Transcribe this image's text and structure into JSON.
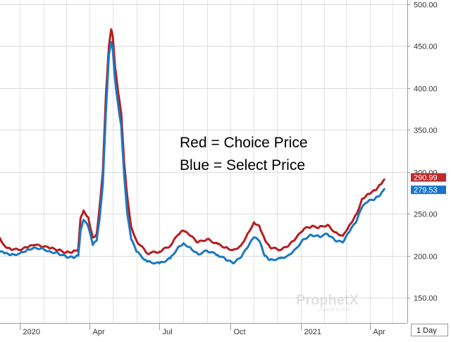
{
  "chart_data": {
    "type": "line",
    "title": "",
    "xlabel": "",
    "ylabel": "",
    "ylim": [
      120,
      505
    ],
    "y_ticks": [
      "150.00",
      "200.00",
      "250.00",
      "300.00",
      "350.00",
      "400.00",
      "450.00",
      "500.00"
    ],
    "x_tick_labels": [
      "2020",
      "Apr",
      "Jul",
      "Oct",
      "2021",
      "Apr"
    ],
    "x_range": [
      "2019-12-06",
      "2021-05-20"
    ],
    "annotation_lines": [
      "Red = Choice Price",
      "Blue = Select Price"
    ],
    "last_value_badges": [
      {
        "text": "290.99",
        "color": "#c0282a"
      },
      {
        "text": "279.53",
        "color": "#1a73c8"
      }
    ],
    "timeframe_label": "1 Day",
    "watermark": "ProphetX",
    "grid": true,
    "series": [
      {
        "color": "#b81c20",
        "points": [
          [
            "2019-12-06",
            221
          ],
          [
            "2019-12-12",
            212
          ],
          [
            "2019-12-20",
            208
          ],
          [
            "2020-01-01",
            207
          ],
          [
            "2020-01-10",
            210
          ],
          [
            "2020-01-20",
            213
          ],
          [
            "2020-02-01",
            211
          ],
          [
            "2020-02-10",
            209
          ],
          [
            "2020-02-20",
            207
          ],
          [
            "2020-03-01",
            204
          ],
          [
            "2020-03-10",
            205
          ],
          [
            "2020-03-17",
            208
          ],
          [
            "2020-03-20",
            245
          ],
          [
            "2020-03-24",
            254
          ],
          [
            "2020-03-30",
            246
          ],
          [
            "2020-04-05",
            222
          ],
          [
            "2020-04-10",
            226
          ],
          [
            "2020-04-14",
            260
          ],
          [
            "2020-04-18",
            300
          ],
          [
            "2020-04-22",
            390
          ],
          [
            "2020-04-26",
            450
          ],
          [
            "2020-04-29",
            470
          ],
          [
            "2020-05-01",
            462
          ],
          [
            "2020-05-04",
            425
          ],
          [
            "2020-05-08",
            395
          ],
          [
            "2020-05-12",
            370
          ],
          [
            "2020-05-16",
            310
          ],
          [
            "2020-05-20",
            270
          ],
          [
            "2020-05-25",
            235
          ],
          [
            "2020-06-01",
            218
          ],
          [
            "2020-06-15",
            203
          ],
          [
            "2020-07-01",
            205
          ],
          [
            "2020-07-15",
            212
          ],
          [
            "2020-07-25",
            225
          ],
          [
            "2020-08-01",
            230
          ],
          [
            "2020-08-10",
            224
          ],
          [
            "2020-08-20",
            216
          ],
          [
            "2020-09-01",
            220
          ],
          [
            "2020-09-15",
            214
          ],
          [
            "2020-09-25",
            210
          ],
          [
            "2020-10-05",
            207
          ],
          [
            "2020-10-15",
            212
          ],
          [
            "2020-10-25",
            228
          ],
          [
            "2020-11-01",
            240
          ],
          [
            "2020-11-08",
            236
          ],
          [
            "2020-11-15",
            220
          ],
          [
            "2020-11-22",
            210
          ],
          [
            "2020-12-05",
            207
          ],
          [
            "2020-12-15",
            211
          ],
          [
            "2020-12-25",
            220
          ],
          [
            "2021-01-05",
            232
          ],
          [
            "2021-01-15",
            235
          ],
          [
            "2021-01-25",
            234
          ],
          [
            "2021-02-05",
            237
          ],
          [
            "2021-02-15",
            228
          ],
          [
            "2021-02-25",
            224
          ],
          [
            "2021-03-05",
            236
          ],
          [
            "2021-03-15",
            250
          ],
          [
            "2021-03-22",
            268
          ],
          [
            "2021-03-30",
            274
          ],
          [
            "2021-04-08",
            278
          ],
          [
            "2021-04-15",
            285
          ],
          [
            "2021-04-20",
            290.99
          ]
        ]
      },
      {
        "color": "#1a78c2",
        "points": [
          [
            "2019-12-06",
            205
          ],
          [
            "2019-12-12",
            203
          ],
          [
            "2019-12-20",
            201
          ],
          [
            "2020-01-01",
            203
          ],
          [
            "2020-01-10",
            207
          ],
          [
            "2020-01-20",
            210
          ],
          [
            "2020-02-01",
            208
          ],
          [
            "2020-02-10",
            205
          ],
          [
            "2020-02-20",
            203
          ],
          [
            "2020-03-01",
            199
          ],
          [
            "2020-03-10",
            198
          ],
          [
            "2020-03-17",
            200
          ],
          [
            "2020-03-20",
            230
          ],
          [
            "2020-03-24",
            243
          ],
          [
            "2020-03-30",
            235
          ],
          [
            "2020-04-05",
            213
          ],
          [
            "2020-04-10",
            218
          ],
          [
            "2020-04-14",
            245
          ],
          [
            "2020-04-18",
            285
          ],
          [
            "2020-04-22",
            370
          ],
          [
            "2020-04-26",
            440
          ],
          [
            "2020-04-29",
            455
          ],
          [
            "2020-05-01",
            447
          ],
          [
            "2020-05-04",
            410
          ],
          [
            "2020-05-08",
            380
          ],
          [
            "2020-05-12",
            355
          ],
          [
            "2020-05-16",
            295
          ],
          [
            "2020-05-20",
            250
          ],
          [
            "2020-05-25",
            220
          ],
          [
            "2020-06-01",
            205
          ],
          [
            "2020-06-15",
            193
          ],
          [
            "2020-07-01",
            191
          ],
          [
            "2020-07-15",
            197
          ],
          [
            "2020-07-25",
            210
          ],
          [
            "2020-08-01",
            215
          ],
          [
            "2020-08-10",
            210
          ],
          [
            "2020-08-20",
            202
          ],
          [
            "2020-09-01",
            206
          ],
          [
            "2020-09-15",
            201
          ],
          [
            "2020-09-25",
            196
          ],
          [
            "2020-10-05",
            191
          ],
          [
            "2020-10-15",
            198
          ],
          [
            "2020-10-25",
            212
          ],
          [
            "2020-11-01",
            222
          ],
          [
            "2020-11-08",
            218
          ],
          [
            "2020-11-15",
            200
          ],
          [
            "2020-11-22",
            195
          ],
          [
            "2020-12-05",
            197
          ],
          [
            "2020-12-15",
            200
          ],
          [
            "2020-12-25",
            208
          ],
          [
            "2021-01-05",
            220
          ],
          [
            "2021-01-15",
            225
          ],
          [
            "2021-01-25",
            223
          ],
          [
            "2021-02-05",
            226
          ],
          [
            "2021-02-15",
            218
          ],
          [
            "2021-02-25",
            216
          ],
          [
            "2021-03-05",
            228
          ],
          [
            "2021-03-15",
            242
          ],
          [
            "2021-03-22",
            258
          ],
          [
            "2021-03-30",
            265
          ],
          [
            "2021-04-08",
            268
          ],
          [
            "2021-04-15",
            273
          ],
          [
            "2021-04-20",
            279.53
          ]
        ]
      }
    ]
  }
}
